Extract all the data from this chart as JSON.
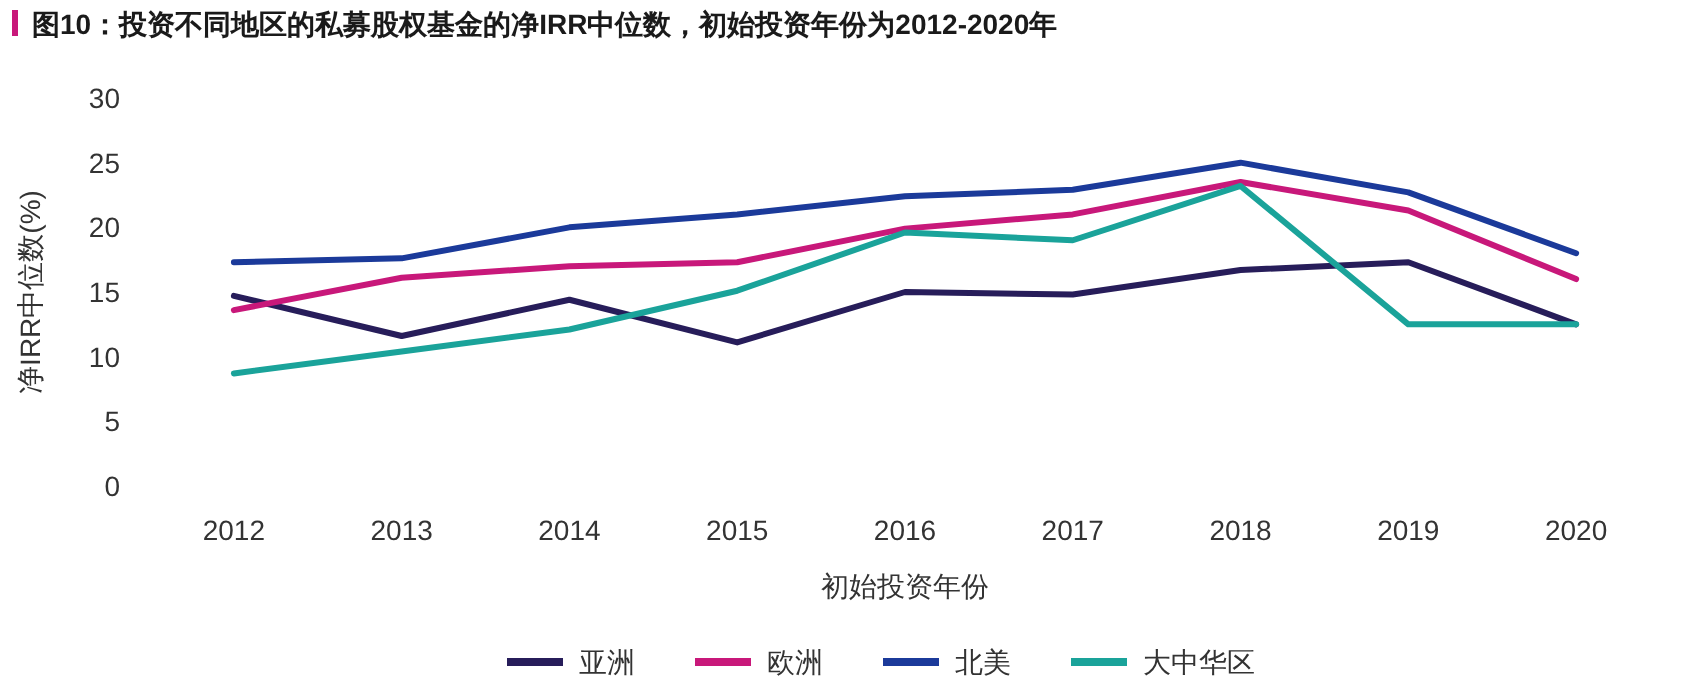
{
  "chart_data": {
    "type": "line",
    "title": "图10：投资不同地区的私募股权基金的净IRR中位数，初始投资年份为2012-2020年",
    "xlabel": "初始投资年份",
    "ylabel": "净IRR中位数(%)",
    "categories": [
      "2012",
      "2013",
      "2014",
      "2015",
      "2016",
      "2017",
      "2018",
      "2019",
      "2020"
    ],
    "series": [
      {
        "name": "亚洲",
        "color": "#271d5a",
        "values": [
          14.7,
          11.6,
          14.4,
          11.1,
          15.0,
          14.8,
          16.7,
          17.3,
          12.5
        ]
      },
      {
        "name": "欧洲",
        "color": "#c8187a",
        "values": [
          13.6,
          16.1,
          17.0,
          17.3,
          19.9,
          21.0,
          23.5,
          21.3,
          16.0
        ]
      },
      {
        "name": "北美",
        "color": "#1b3a9a",
        "values": [
          17.3,
          17.6,
          20.0,
          21.0,
          22.4,
          22.9,
          25.0,
          22.7,
          18.0
        ]
      },
      {
        "name": "大中华区",
        "color": "#1aa39a",
        "values": [
          8.7,
          10.4,
          12.1,
          15.1,
          19.6,
          19.0,
          23.2,
          12.5,
          12.5
        ]
      }
    ],
    "ylim": [
      0,
      30
    ],
    "yticks": [
      0,
      5,
      10,
      15,
      20,
      25,
      30
    ],
    "grid": false,
    "legend": "bottom",
    "marker": "none",
    "line_style": "solid"
  }
}
